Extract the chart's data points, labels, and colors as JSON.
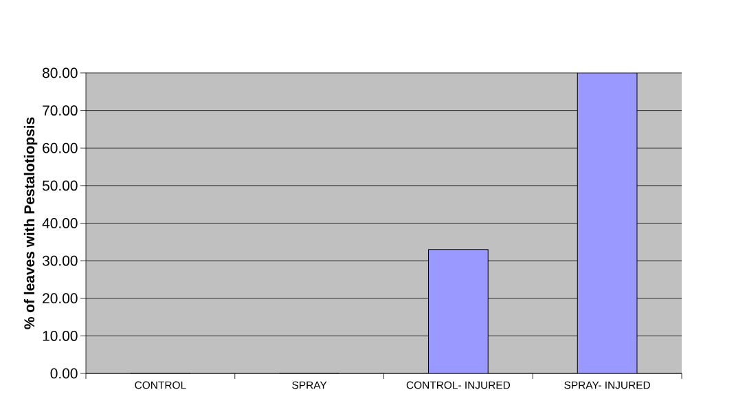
{
  "chart_data": {
    "type": "bar",
    "ylabel": "% of leaves with Pestalotiopsis",
    "categories": [
      "CONTROL",
      "SPRAY",
      "CONTROL- INJURED",
      "SPRAY- INJURED"
    ],
    "values": [
      0,
      0,
      33,
      80
    ],
    "color": "#9999ff",
    "ylim": [
      0,
      80
    ],
    "yticks": [
      {
        "value": 0,
        "label": "0.00"
      },
      {
        "value": 10,
        "label": "10.00"
      },
      {
        "value": 20,
        "label": "20.00"
      },
      {
        "value": 30,
        "label": "30.00"
      },
      {
        "value": 40,
        "label": "40.00"
      },
      {
        "value": 50,
        "label": "50.00"
      },
      {
        "value": 60,
        "label": "60.00"
      },
      {
        "value": 70,
        "label": "70.00"
      },
      {
        "value": 80,
        "label": "80.00"
      }
    ],
    "grid": "y"
  }
}
